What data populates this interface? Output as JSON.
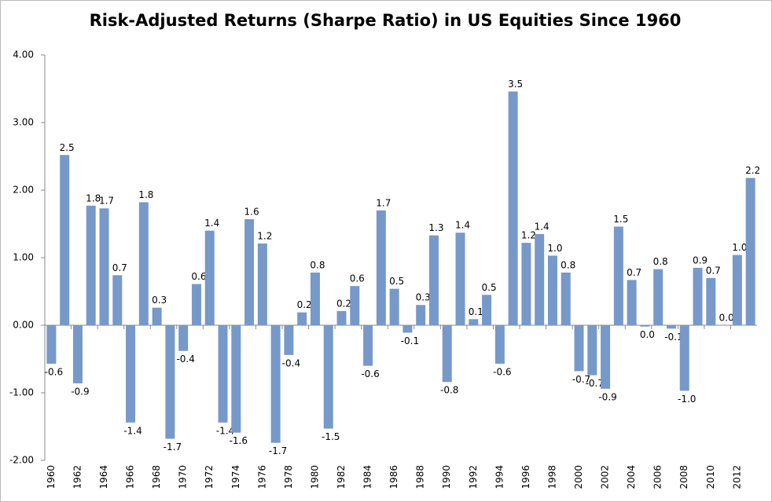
{
  "chart_data": {
    "type": "bar",
    "title": "Risk-Adjusted Returns (Sharpe Ratio) in US Equities Since 1960",
    "categories": [
      "1960",
      null,
      "1962",
      null,
      "1964",
      null,
      "1966",
      null,
      "1968",
      null,
      "1970",
      null,
      "1972",
      null,
      "1974",
      null,
      "1976",
      null,
      "1978",
      null,
      "1980",
      null,
      "1982",
      null,
      "1984",
      null,
      "1986",
      null,
      "1988",
      null,
      "1990",
      null,
      "1992",
      null,
      "1994",
      null,
      "1996",
      null,
      "1998",
      null,
      "2000",
      null,
      "2002",
      null,
      "2004",
      null,
      "2006",
      null,
      "2008",
      null,
      "2010",
      null,
      "2012",
      null
    ],
    "values": [
      -0.57,
      2.52,
      -0.86,
      1.77,
      1.73,
      0.74,
      -1.44,
      1.82,
      0.26,
      -1.68,
      -0.38,
      0.61,
      1.4,
      -1.44,
      -1.59,
      1.57,
      1.21,
      -1.74,
      -0.44,
      0.19,
      0.78,
      -1.53,
      0.21,
      0.58,
      -0.6,
      1.7,
      0.54,
      -0.11,
      0.3,
      1.33,
      -0.84,
      1.37,
      0.09,
      0.45,
      -0.57,
      3.46,
      1.22,
      1.35,
      1.03,
      0.78,
      -0.68,
      -0.74,
      -0.94,
      1.46,
      0.67,
      -0.02,
      0.83,
      -0.05,
      -0.97,
      0.85,
      0.7,
      0.0,
      1.04,
      2.18
    ],
    "value_labels": [
      "-0.6",
      "2.5",
      "-0.9",
      "1.8",
      "1.7",
      "0.7",
      "-1.4",
      "1.8",
      "0.3",
      "-1.7",
      "-0.4",
      "0.6",
      "1.4",
      "-1.4",
      "-1.6",
      "1.6",
      "1.2",
      "-1.7",
      "-0.4",
      "0.2",
      "0.8",
      "-1.5",
      "0.2",
      "0.6",
      "-0.6",
      "1.7",
      "0.5",
      "-0.1",
      "0.3",
      "1.3",
      "-0.8",
      "1.4",
      "0.1",
      "0.5",
      "-0.6",
      "3.5",
      "1.2",
      "1.4",
      "1.0",
      "0.8",
      "-0.7",
      "-0.7",
      "-0.9",
      "1.5",
      "0.7",
      "0.0",
      "0.8",
      "-0.1",
      "-1.0",
      "0.9",
      "0.7",
      "0.0",
      "1.0",
      "2.2"
    ],
    "color": "#7799c9",
    "ylim": [
      -2,
      4
    ],
    "yticks": [
      {
        "value": -2,
        "label": "-2.00"
      },
      {
        "value": -1,
        "label": "-1.00"
      },
      {
        "value": 0,
        "label": "0.00"
      },
      {
        "value": 1,
        "label": "1.00"
      },
      {
        "value": 2,
        "label": "2.00"
      },
      {
        "value": 3,
        "label": "3.00"
      },
      {
        "value": 4,
        "label": "4.00"
      }
    ],
    "grid": false
  }
}
